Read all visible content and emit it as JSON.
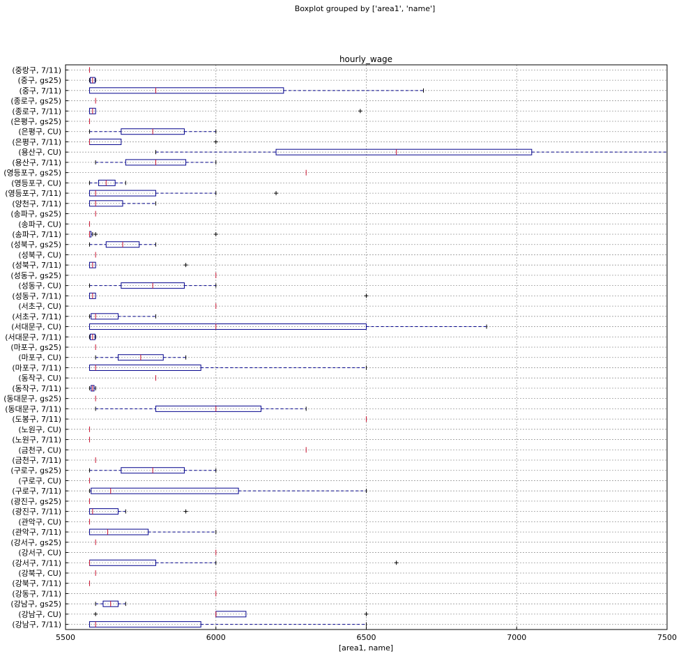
{
  "suptitle": "Boxplot grouped by ['area1', 'name']",
  "chart_data": {
    "type": "boxplot",
    "orientation": "horizontal",
    "title": "hourly_wage",
    "xlabel": "[area1, name]",
    "ylabel": "",
    "xlim": [
      5500,
      7500
    ],
    "xticks": [
      5500,
      6000,
      6500,
      7000,
      7500
    ],
    "grid": true,
    "colors": {
      "box": "#00008b",
      "median": "#c8102e",
      "flier": "#000000",
      "grid": "#999999"
    },
    "groups": [
      {
        "label": "(강남구, 7/11)",
        "whislo": 5580,
        "q1": 5580,
        "med": 5600,
        "q3": 5950,
        "whishi": 6500,
        "fliers": []
      },
      {
        "label": "(강남구, CU)",
        "whislo": 6000,
        "q1": 6000,
        "med": 6000,
        "q3": 6100,
        "whishi": 6100,
        "fliers": [
          5600,
          6500
        ]
      },
      {
        "label": "(강남구, gs25)",
        "whislo": 5600,
        "q1": 5625,
        "med": 5650,
        "q3": 5675,
        "whishi": 5700,
        "fliers": []
      },
      {
        "label": "(강동구, 7/11)",
        "whislo": 6000,
        "q1": 6000,
        "med": 6000,
        "q3": 6000,
        "whishi": 6000,
        "fliers": []
      },
      {
        "label": "(강북구, 7/11)",
        "whislo": 5580,
        "q1": 5580,
        "med": 5580,
        "q3": 5580,
        "whishi": 5580,
        "fliers": []
      },
      {
        "label": "(강북구, CU)",
        "whislo": 5600,
        "q1": 5600,
        "med": 5600,
        "q3": 5600,
        "whishi": 5600,
        "fliers": []
      },
      {
        "label": "(강서구, 7/11)",
        "whislo": 5580,
        "q1": 5580,
        "med": 5580,
        "q3": 5800,
        "whishi": 6000,
        "fliers": [
          6600
        ]
      },
      {
        "label": "(강서구, CU)",
        "whislo": 6000,
        "q1": 6000,
        "med": 6000,
        "q3": 6000,
        "whishi": 6000,
        "fliers": []
      },
      {
        "label": "(강서구, gs25)",
        "whislo": 5600,
        "q1": 5600,
        "med": 5600,
        "q3": 5600,
        "whishi": 5600,
        "fliers": []
      },
      {
        "label": "(관악구, 7/11)",
        "whislo": 5580,
        "q1": 5580,
        "med": 5640,
        "q3": 5775,
        "whishi": 6000,
        "fliers": []
      },
      {
        "label": "(관악구, CU)",
        "whislo": 5580,
        "q1": 5580,
        "med": 5580,
        "q3": 5580,
        "whishi": 5580,
        "fliers": []
      },
      {
        "label": "(광진구, 7/11)",
        "whislo": 5580,
        "q1": 5580,
        "med": 5590,
        "q3": 5675,
        "whishi": 5700,
        "fliers": [
          5900
        ]
      },
      {
        "label": "(광진구, gs25)",
        "whislo": 5580,
        "q1": 5580,
        "med": 5580,
        "q3": 5580,
        "whishi": 5580,
        "fliers": []
      },
      {
        "label": "(구로구, 7/11)",
        "whislo": 5580,
        "q1": 5585,
        "med": 5650,
        "q3": 6075,
        "whishi": 6500,
        "fliers": []
      },
      {
        "label": "(구로구, CU)",
        "whislo": 5580,
        "q1": 5580,
        "med": 5580,
        "q3": 5580,
        "whishi": 5580,
        "fliers": []
      },
      {
        "label": "(구로구, gs25)",
        "whislo": 5580,
        "q1": 5685,
        "med": 5790,
        "q3": 5895,
        "whishi": 6000,
        "fliers": []
      },
      {
        "label": "(금천구, 7/11)",
        "whislo": 5600,
        "q1": 5600,
        "med": 5600,
        "q3": 5600,
        "whishi": 5600,
        "fliers": []
      },
      {
        "label": "(금천구, CU)",
        "whislo": 6300,
        "q1": 6300,
        "med": 6300,
        "q3": 6300,
        "whishi": 6300,
        "fliers": []
      },
      {
        "label": "(노원구, 7/11)",
        "whislo": 5580,
        "q1": 5580,
        "med": 5580,
        "q3": 5580,
        "whishi": 5580,
        "fliers": []
      },
      {
        "label": "(노원구, CU)",
        "whislo": 5580,
        "q1": 5580,
        "med": 5580,
        "q3": 5580,
        "whishi": 5580,
        "fliers": []
      },
      {
        "label": "(도봉구, 7/11)",
        "whislo": 6500,
        "q1": 6500,
        "med": 6500,
        "q3": 6500,
        "whishi": 6500,
        "fliers": []
      },
      {
        "label": "(동대문구, 7/11)",
        "whislo": 5600,
        "q1": 5800,
        "med": 6000,
        "q3": 6150,
        "whishi": 6300,
        "fliers": []
      },
      {
        "label": "(동대문구, gs25)",
        "whislo": 5600,
        "q1": 5600,
        "med": 5600,
        "q3": 5600,
        "whishi": 5600,
        "fliers": []
      },
      {
        "label": "(동작구, 7/11)",
        "whislo": 5580,
        "q1": 5585,
        "med": 5590,
        "q3": 5595,
        "whishi": 5600,
        "fliers": []
      },
      {
        "label": "(동작구, CU)",
        "whislo": 5800,
        "q1": 5800,
        "med": 5800,
        "q3": 5800,
        "whishi": 5800,
        "fliers": []
      },
      {
        "label": "(마포구, 7/11)",
        "whislo": 5580,
        "q1": 5580,
        "med": 5600,
        "q3": 5950,
        "whishi": 6500,
        "fliers": []
      },
      {
        "label": "(마포구, CU)",
        "whislo": 5600,
        "q1": 5675,
        "med": 5750,
        "q3": 5825,
        "whishi": 5900,
        "fliers": []
      },
      {
        "label": "(마포구, gs25)",
        "whislo": 5600,
        "q1": 5600,
        "med": 5600,
        "q3": 5600,
        "whishi": 5600,
        "fliers": []
      },
      {
        "label": "(서대문구, 7/11)",
        "whislo": 5580,
        "q1": 5582,
        "med": 5590,
        "q3": 5598,
        "whishi": 5600,
        "fliers": []
      },
      {
        "label": "(서대문구, CU)",
        "whislo": 5580,
        "q1": 5580,
        "med": 6000,
        "q3": 6500,
        "whishi": 6900,
        "fliers": []
      },
      {
        "label": "(서초구, 7/11)",
        "whislo": 5580,
        "q1": 5585,
        "med": 5600,
        "q3": 5675,
        "whishi": 5800,
        "fliers": []
      },
      {
        "label": "(서초구, CU)",
        "whislo": 6000,
        "q1": 6000,
        "med": 6000,
        "q3": 6000,
        "whishi": 6000,
        "fliers": []
      },
      {
        "label": "(성동구, 7/11)",
        "whislo": 5580,
        "q1": 5580,
        "med": 5590,
        "q3": 5600,
        "whishi": 5600,
        "fliers": [
          6500
        ]
      },
      {
        "label": "(성동구, CU)",
        "whislo": 5580,
        "q1": 5685,
        "med": 5790,
        "q3": 5895,
        "whishi": 6000,
        "fliers": []
      },
      {
        "label": "(성동구, gs25)",
        "whislo": 6000,
        "q1": 6000,
        "med": 6000,
        "q3": 6000,
        "whishi": 6000,
        "fliers": []
      },
      {
        "label": "(성북구, 7/11)",
        "whislo": 5580,
        "q1": 5580,
        "med": 5590,
        "q3": 5600,
        "whishi": 5600,
        "fliers": [
          5900
        ]
      },
      {
        "label": "(성북구, CU)",
        "whislo": 5600,
        "q1": 5600,
        "med": 5600,
        "q3": 5600,
        "whishi": 5600,
        "fliers": []
      },
      {
        "label": "(성북구, gs25)",
        "whislo": 5580,
        "q1": 5635,
        "med": 5690,
        "q3": 5745,
        "whishi": 5800,
        "fliers": []
      },
      {
        "label": "(송파구, 7/11)",
        "whislo": 5580,
        "q1": 5580,
        "med": 5580,
        "q3": 5585,
        "whishi": 5590,
        "fliers": [
          5600,
          6000
        ]
      },
      {
        "label": "(송파구, CU)",
        "whislo": 5580,
        "q1": 5580,
        "med": 5580,
        "q3": 5580,
        "whishi": 5580,
        "fliers": []
      },
      {
        "label": "(송파구, gs25)",
        "whislo": 5600,
        "q1": 5600,
        "med": 5600,
        "q3": 5600,
        "whishi": 5600,
        "fliers": []
      },
      {
        "label": "(양천구, 7/11)",
        "whislo": 5580,
        "q1": 5580,
        "med": 5600,
        "q3": 5690,
        "whishi": 5800,
        "fliers": []
      },
      {
        "label": "(영등포구, 7/11)",
        "whislo": 5580,
        "q1": 5580,
        "med": 5600,
        "q3": 5800,
        "whishi": 6000,
        "fliers": [
          6200
        ]
      },
      {
        "label": "(영등포구, CU)",
        "whislo": 5580,
        "q1": 5610,
        "med": 5635,
        "q3": 5665,
        "whishi": 5700,
        "fliers": []
      },
      {
        "label": "(영등포구, gs25)",
        "whislo": 6300,
        "q1": 6300,
        "med": 6300,
        "q3": 6300,
        "whishi": 6300,
        "fliers": []
      },
      {
        "label": "(용산구, 7/11)",
        "whislo": 5600,
        "q1": 5700,
        "med": 5800,
        "q3": 5900,
        "whishi": 6000,
        "fliers": []
      },
      {
        "label": "(용산구, CU)",
        "whislo": 5800,
        "q1": 6200,
        "med": 6600,
        "q3": 7050,
        "whishi": 7500,
        "fliers": []
      },
      {
        "label": "(은평구, 7/11)",
        "whislo": 5580,
        "q1": 5580,
        "med": 5580,
        "q3": 5685,
        "whishi": 5685,
        "fliers": [
          6000
        ]
      },
      {
        "label": "(은평구, CU)",
        "whislo": 5580,
        "q1": 5685,
        "med": 5790,
        "q3": 5895,
        "whishi": 6000,
        "fliers": []
      },
      {
        "label": "(은평구, gs25)",
        "whislo": 5580,
        "q1": 5580,
        "med": 5580,
        "q3": 5580,
        "whishi": 5580,
        "fliers": []
      },
      {
        "label": "(종로구, 7/11)",
        "whislo": 5580,
        "q1": 5580,
        "med": 5590,
        "q3": 5600,
        "whishi": 5600,
        "fliers": [
          6480
        ]
      },
      {
        "label": "(종로구, gs25)",
        "whislo": 5600,
        "q1": 5600,
        "med": 5600,
        "q3": 5600,
        "whishi": 5600,
        "fliers": []
      },
      {
        "label": "(중구, 7/11)",
        "whislo": 5580,
        "q1": 5580,
        "med": 5800,
        "q3": 6225,
        "whishi": 6690,
        "fliers": []
      },
      {
        "label": "(중구, gs25)",
        "whislo": 5580,
        "q1": 5582,
        "med": 5590,
        "q3": 5598,
        "whishi": 5600,
        "fliers": []
      },
      {
        "label": "(중랑구, 7/11)",
        "whislo": 5580,
        "q1": 5580,
        "med": 5580,
        "q3": 5580,
        "whishi": 5580,
        "fliers": []
      }
    ]
  }
}
